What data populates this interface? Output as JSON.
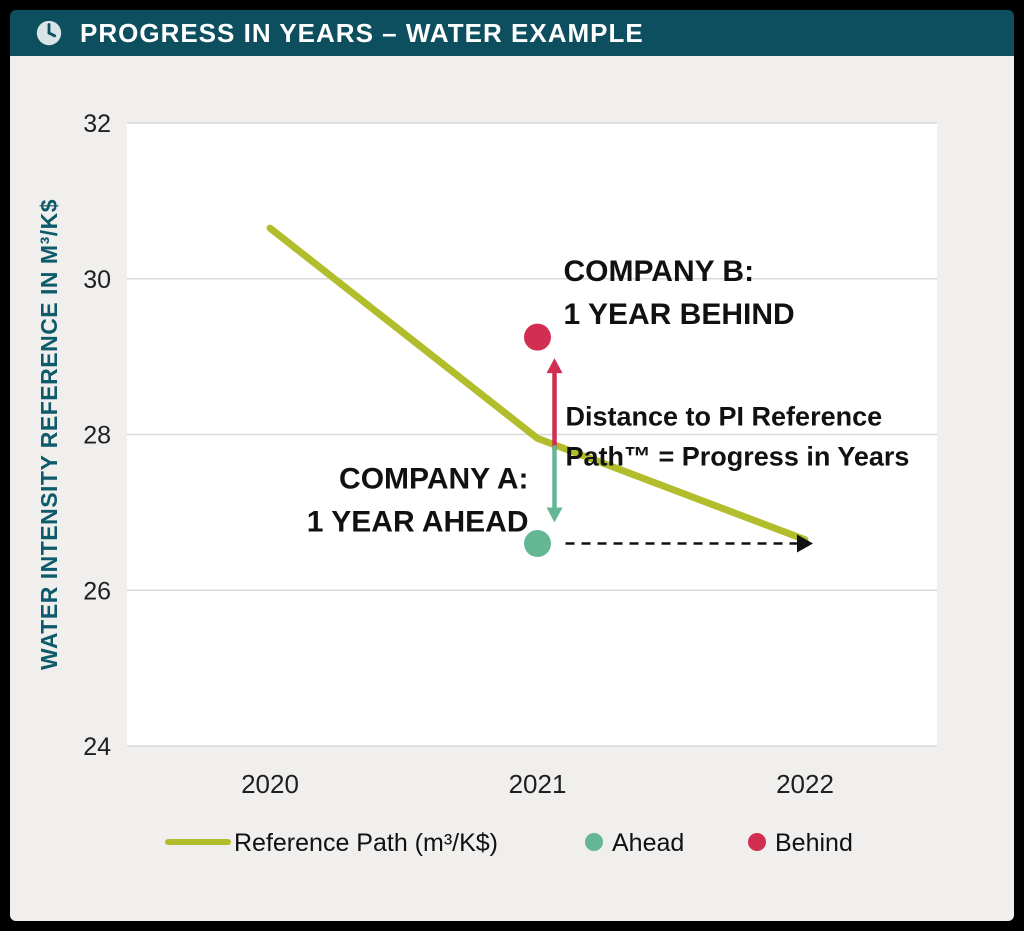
{
  "header": {
    "title": "PROGRESS IN YEARS – WATER EXAMPLE",
    "bg_color": "#0d4f5f",
    "text_color": "#ffffff",
    "icon": "clock-icon"
  },
  "chart_data": {
    "type": "line",
    "title": "",
    "xlabel": "",
    "ylabel": "WATER INTENSITY REFERENCE IN M³/K$",
    "ylim": [
      24,
      32
    ],
    "yticks": [
      24,
      26,
      28,
      30,
      32
    ],
    "x": [
      2020,
      2021,
      2022
    ],
    "xticks": [
      "2020",
      "2021",
      "2022"
    ],
    "grid": "horizontal",
    "colors": {
      "reference_path": "#b2bd2b",
      "ahead": "#63b795",
      "behind": "#d22e52",
      "axis_label": "#0d5a6a",
      "plot_bg": "#ffffff",
      "gridline": "#d9d9d9"
    },
    "reference_path": {
      "name": "Reference Path (m³/K$)",
      "values": [
        30.65,
        27.95,
        26.65
      ],
      "color": "#b2bd2b"
    },
    "companies": [
      {
        "name": "Company A",
        "x": 2021,
        "y": 26.6,
        "status": "Ahead",
        "color": "#63b795",
        "label_lines": [
          "COMPANY A:",
          "1 YEAR AHEAD"
        ]
      },
      {
        "name": "Company B",
        "x": 2021,
        "y": 29.25,
        "status": "Behind",
        "color": "#d22e52",
        "label_lines": [
          "COMPANY B:",
          "1 YEAR BEHIND"
        ]
      }
    ],
    "annotation": {
      "lines": [
        "Distance to PI Reference",
        "Path™ = Progress in Years"
      ]
    },
    "legend": [
      {
        "label": "Reference Path (m³/K$)",
        "marker": "line",
        "color": "#b2bd2b"
      },
      {
        "label": "Ahead",
        "marker": "dot",
        "color": "#63b795"
      },
      {
        "label": "Behind",
        "marker": "dot",
        "color": "#d22e52"
      }
    ]
  }
}
